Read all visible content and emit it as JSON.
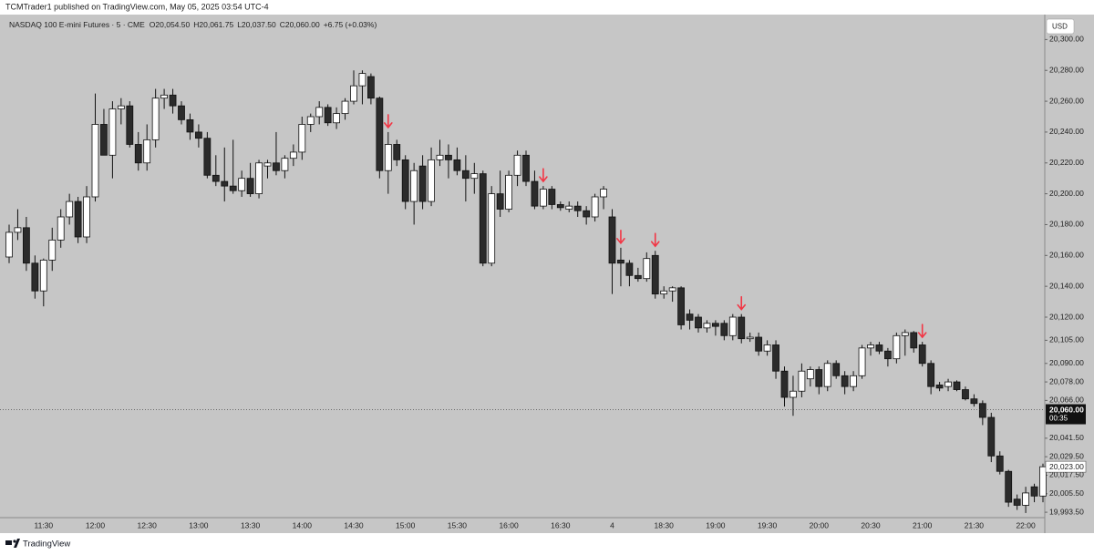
{
  "chart_data": {
    "type": "candlestick",
    "title": "NASDAQ 100 E-mini Futures · 5 · CME",
    "subtitle": "TCMTrader1 published on TradingView.com, May 05, 2025 03:54 UTC-4",
    "quote": [
      "O20,054.50",
      "H20,061.75",
      "L20,037.50",
      "C20,060.00",
      "+6.75 (+0.03%)"
    ],
    "currency": "USD",
    "footer": "TradingView",
    "categories": [
      null,
      null,
      null,
      null,
      "11:30",
      null,
      null,
      null,
      null,
      null,
      "12:00",
      null,
      null,
      null,
      null,
      null,
      "12:30",
      null,
      null,
      null,
      null,
      null,
      "13:00",
      null,
      null,
      null,
      null,
      null,
      "13:30",
      null,
      null,
      null,
      null,
      null,
      "14:00",
      null,
      null,
      null,
      null,
      null,
      "14:30",
      null,
      null,
      null,
      null,
      null,
      "15:00",
      null,
      null,
      null,
      null,
      null,
      "15:30",
      null,
      null,
      null,
      null,
      null,
      "16:00",
      null,
      null,
      null,
      null,
      null,
      "16:30",
      null,
      null,
      null,
      null,
      null,
      "4",
      null,
      null,
      null,
      null,
      null,
      "18:30",
      null,
      null,
      null,
      null,
      null,
      "19:00",
      null,
      null,
      null,
      null,
      null,
      "19:30",
      null,
      null,
      null,
      null,
      null,
      "20:00",
      null,
      null,
      null,
      null,
      null,
      "20:30",
      null,
      null,
      null,
      null,
      null,
      "21:00",
      null,
      null,
      null,
      null,
      null,
      "21:30",
      null,
      null,
      null,
      null,
      null,
      "22:00",
      null,
      null
    ],
    "open": [
      20159,
      20175,
      20178,
      20155,
      20137,
      20157,
      20170,
      20185,
      20195,
      20172,
      20198,
      20245,
      20225,
      20255,
      20257,
      20232,
      20220,
      20235,
      20262,
      20264,
      20257,
      20248,
      20240,
      20236,
      20212,
      20208,
      20205,
      20202,
      20210,
      20200,
      20218,
      20220,
      20215,
      20223,
      20227,
      20245,
      20250,
      20256,
      20246,
      20252,
      20260,
      20270,
      20276,
      20262,
      20215,
      20232,
      20222,
      20195,
      20218,
      20195,
      20222,
      20225,
      20222,
      20215,
      20210,
      20213,
      20155,
      20200,
      20190,
      20212,
      20225,
      20208,
      20192,
      20203,
      20193,
      20190,
      20192,
      20189,
      20185,
      20198,
      20185,
      20157,
      20155,
      20147,
      20145,
      20160,
      20135,
      20137,
      20139,
      20122,
      20120,
      20113,
      20116,
      20116,
      20108,
      20120,
      20106,
      20107,
      20098,
      20102,
      20085,
      20068,
      20072,
      20080,
      20086,
      20075,
      20090,
      20082,
      20075,
      20082,
      20100,
      20102,
      20098,
      20093,
      20108,
      20110,
      20102,
      20090,
      20076,
      20075,
      20078,
      20073,
      20067,
      20064,
      20055,
      20030,
      20020,
      20002,
      19998,
      20010,
      20004
    ],
    "high": [
      20180,
      20190,
      20185,
      20160,
      20158,
      20178,
      20190,
      20200,
      20198,
      20205,
      20265,
      20255,
      20260,
      20262,
      20260,
      20240,
      20245,
      20268,
      20268,
      20268,
      20260,
      20252,
      20245,
      20240,
      20225,
      20230,
      20235,
      20215,
      20220,
      20222,
      20222,
      20240,
      20225,
      20232,
      20250,
      20252,
      20260,
      20258,
      20256,
      20262,
      20280,
      20280,
      20278,
      20263,
      20240,
      20235,
      20225,
      20220,
      20225,
      20230,
      20235,
      20232,
      20230,
      20225,
      20220,
      20215,
      20205,
      20215,
      20215,
      20228,
      20228,
      20215,
      20205,
      20205,
      20195,
      20195,
      20195,
      20192,
      20200,
      20205,
      20190,
      20165,
      20157,
      20152,
      20162,
      20163,
      20140,
      20140,
      20140,
      20125,
      20122,
      20118,
      20118,
      20118,
      20122,
      20122,
      20110,
      20110,
      20105,
      20105,
      20088,
      20082,
      20090,
      20088,
      20088,
      20092,
      20092,
      20085,
      20085,
      20102,
      20104,
      20104,
      20100,
      20110,
      20112,
      20111,
      20104,
      20092,
      20078,
      20080,
      20079,
      20075,
      20070,
      20066,
      20058,
      20033,
      20021,
      20005,
      20010,
      20012,
      20025
    ],
    "low": [
      20155,
      20170,
      20150,
      20132,
      20127,
      20150,
      20165,
      20180,
      20168,
      20168,
      20195,
      20225,
      20210,
      20245,
      20230,
      20215,
      20215,
      20230,
      20255,
      20252,
      20245,
      20235,
      20230,
      20210,
      20205,
      20195,
      20200,
      20198,
      20198,
      20197,
      20210,
      20212,
      20210,
      20218,
      20222,
      20240,
      20245,
      20244,
      20242,
      20248,
      20258,
      20258,
      20258,
      20210,
      20200,
      20218,
      20190,
      20180,
      20190,
      20192,
      20218,
      20210,
      20212,
      20195,
      20200,
      20153,
      20153,
      20185,
      20188,
      20205,
      20205,
      20190,
      20190,
      20190,
      20189,
      20188,
      20185,
      20180,
      20182,
      20190,
      20135,
      20140,
      20140,
      20143,
      20143,
      20132,
      20132,
      20130,
      20112,
      20112,
      20110,
      20110,
      20108,
      20105,
      20105,
      20103,
      20104,
      20095,
      20095,
      20080,
      20062,
      20056,
      20068,
      20075,
      20070,
      20072,
      20080,
      20070,
      20072,
      20080,
      20095,
      20096,
      20088,
      20090,
      20095,
      20097,
      20088,
      20070,
      20072,
      20072,
      20072,
      20066,
      20062,
      20050,
      20026,
      20018,
      19997,
      19995,
      19993,
      20000,
      20000
    ],
    "close": [
      20175,
      20178,
      20155,
      20137,
      20157,
      20170,
      20185,
      20195,
      20172,
      20198,
      20245,
      20225,
      20255,
      20257,
      20232,
      20220,
      20235,
      20262,
      20264,
      20257,
      20248,
      20240,
      20236,
      20212,
      20208,
      20205,
      20202,
      20210,
      20200,
      20220,
      20220,
      20215,
      20223,
      20227,
      20245,
      20250,
      20256,
      20246,
      20252,
      20260,
      20270,
      20278,
      20262,
      20215,
      20232,
      20222,
      20195,
      20215,
      20195,
      20222,
      20225,
      20222,
      20215,
      20210,
      20213,
      20155,
      20200,
      20190,
      20212,
      20225,
      20208,
      20192,
      20203,
      20193,
      20191,
      20192,
      20189,
      20185,
      20198,
      20203,
      20155,
      20155,
      20147,
      20145,
      20158,
      20135,
      20137,
      20139,
      20115,
      20118,
      20113,
      20116,
      20114,
      20108,
      20120,
      20106,
      20107,
      20098,
      20102,
      20085,
      20068,
      20072,
      20085,
      20086,
      20075,
      20090,
      20082,
      20075,
      20082,
      20100,
      20102,
      20098,
      20093,
      20108,
      20110,
      20100,
      20090,
      20075,
      20074,
      20078,
      20073,
      20067,
      20064,
      20055,
      20030,
      20020,
      20000,
      19998,
      20006,
      20004,
      20023
    ],
    "up_color": "#ffffff",
    "down_color": "#2b2b2b",
    "wick_color": "#111111",
    "signal_bars": [
      44,
      62,
      71,
      75,
      85,
      106
    ],
    "signal_color": "#f23645",
    "ylim": [
      19990,
      20315
    ],
    "yticks": [
      {
        "value": 20300,
        "label": "20,300.00"
      },
      {
        "value": 20280,
        "label": "20,280.00"
      },
      {
        "value": 20260,
        "label": "20,260.00"
      },
      {
        "value": 20240,
        "label": "20,240.00"
      },
      {
        "value": 20220,
        "label": "20,220.00"
      },
      {
        "value": 20200,
        "label": "20,200.00"
      },
      {
        "value": 20180,
        "label": "20,180.00"
      },
      {
        "value": 20160,
        "label": "20,160.00"
      },
      {
        "value": 20140,
        "label": "20,140.00"
      },
      {
        "value": 20120,
        "label": "20,120.00"
      },
      {
        "value": 20105,
        "label": "20,105.00"
      },
      {
        "value": 20090,
        "label": "20,090.00"
      },
      {
        "value": 20078,
        "label": "20,078.00"
      },
      {
        "value": 20066,
        "label": "20,066.00"
      },
      {
        "value": 20041.5,
        "label": "20,041.50"
      },
      {
        "value": 20029.5,
        "label": "20,029.50"
      },
      {
        "value": 20017.5,
        "label": "20,017.50"
      },
      {
        "value": 20005.5,
        "label": "20,005.50"
      },
      {
        "value": 19993.5,
        "label": "19,993.50"
      }
    ],
    "last_price": {
      "value": 20060,
      "label": "20,060.00"
    },
    "countdown": "00:35",
    "price_marker": {
      "value": 20023,
      "label": "20,023.00"
    }
  }
}
